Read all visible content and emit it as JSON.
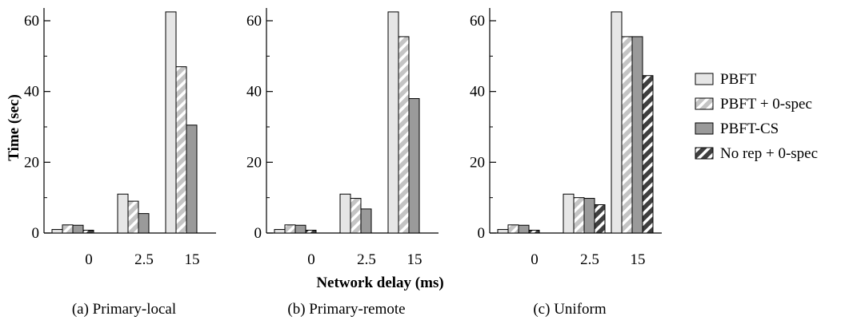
{
  "ylabel": "Time (sec)",
  "xlabel": "Network delay (ms)",
  "legend": {
    "placement": "right",
    "items": [
      "PBFT",
      "PBFT + 0-spec",
      "PBFT-CS",
      "No rep + 0-spec"
    ]
  },
  "colors": {
    "PBFT": "#e6e6e6",
    "PBFT + 0-spec": "#c8c8c8",
    "PBFT-CS": "#9a9a9a",
    "No rep + 0-spec": "#4a4a4a"
  },
  "chart_data": [
    {
      "type": "bar",
      "caption": "(a) Primary-local",
      "categories": [
        "0",
        "2.5",
        "15"
      ],
      "ylim": [
        0,
        65
      ],
      "yticks": [
        0,
        20,
        40,
        60
      ],
      "series": [
        {
          "name": "PBFT",
          "values": [
            1.0,
            11.0,
            62.5
          ]
        },
        {
          "name": "PBFT + 0-spec",
          "values": [
            2.3,
            9.0,
            47.0
          ]
        },
        {
          "name": "PBFT-CS",
          "values": [
            2.2,
            5.5,
            30.5
          ]
        },
        {
          "name": "No rep + 0-spec",
          "values": [
            0.8,
            null,
            null
          ]
        }
      ]
    },
    {
      "type": "bar",
      "caption": "(b) Primary-remote",
      "categories": [
        "0",
        "2.5",
        "15"
      ],
      "ylim": [
        0,
        65
      ],
      "yticks": [
        0,
        20,
        40,
        60
      ],
      "series": [
        {
          "name": "PBFT",
          "values": [
            1.0,
            11.0,
            62.5
          ]
        },
        {
          "name": "PBFT + 0-spec",
          "values": [
            2.3,
            9.8,
            55.5
          ]
        },
        {
          "name": "PBFT-CS",
          "values": [
            2.2,
            6.8,
            38.0
          ]
        },
        {
          "name": "No rep + 0-spec",
          "values": [
            0.8,
            null,
            null
          ]
        }
      ]
    },
    {
      "type": "bar",
      "caption": "(c) Uniform",
      "categories": [
        "0",
        "2.5",
        "15"
      ],
      "ylim": [
        0,
        65
      ],
      "yticks": [
        0,
        20,
        40,
        60
      ],
      "series": [
        {
          "name": "PBFT",
          "values": [
            1.0,
            11.0,
            62.5
          ]
        },
        {
          "name": "PBFT + 0-spec",
          "values": [
            2.3,
            10.0,
            55.5
          ]
        },
        {
          "name": "PBFT-CS",
          "values": [
            2.2,
            9.8,
            55.5
          ]
        },
        {
          "name": "No rep + 0-spec",
          "values": [
            0.8,
            8.0,
            44.5
          ]
        }
      ]
    }
  ]
}
